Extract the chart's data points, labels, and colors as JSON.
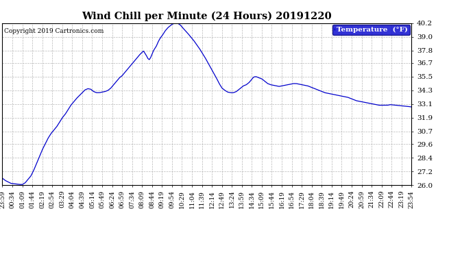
{
  "title": "Wind Chill per Minute (24 Hours) 20191220",
  "copyright": "Copyright 2019 Cartronics.com",
  "legend_label": "Temperature  (°F)",
  "line_color": "#0000cc",
  "legend_bg": "#0000cc",
  "legend_text_color": "#ffffff",
  "background_color": "#ffffff",
  "grid_color": "#b0b0b0",
  "ylim": [
    26.0,
    40.2
  ],
  "yticks": [
    26.0,
    27.2,
    28.4,
    29.6,
    30.7,
    31.9,
    33.1,
    34.3,
    35.5,
    36.7,
    37.8,
    39.0,
    40.2
  ],
  "x_labels": [
    "23:59",
    "00:34",
    "01:09",
    "01:44",
    "02:19",
    "02:54",
    "03:29",
    "04:04",
    "04:39",
    "05:14",
    "05:49",
    "06:24",
    "06:59",
    "07:34",
    "08:09",
    "08:44",
    "09:19",
    "09:54",
    "10:29",
    "11:04",
    "11:39",
    "12:14",
    "12:49",
    "13:24",
    "13:59",
    "14:34",
    "15:09",
    "15:44",
    "16:19",
    "16:54",
    "17:29",
    "18:04",
    "18:39",
    "19:14",
    "19:49",
    "20:24",
    "20:59",
    "21:34",
    "22:09",
    "22:44",
    "23:19",
    "23:54"
  ],
  "ctrl_points": [
    [
      0,
      26.6
    ],
    [
      10,
      26.4
    ],
    [
      30,
      26.15
    ],
    [
      60,
      26.05
    ],
    [
      70,
      26.05
    ],
    [
      80,
      26.2
    ],
    [
      100,
      26.8
    ],
    [
      110,
      27.3
    ],
    [
      120,
      27.9
    ],
    [
      130,
      28.5
    ],
    [
      140,
      29.1
    ],
    [
      150,
      29.6
    ],
    [
      160,
      30.1
    ],
    [
      170,
      30.5
    ],
    [
      180,
      30.8
    ],
    [
      190,
      31.1
    ],
    [
      200,
      31.5
    ],
    [
      210,
      31.9
    ],
    [
      220,
      32.2
    ],
    [
      230,
      32.6
    ],
    [
      240,
      33.0
    ],
    [
      250,
      33.3
    ],
    [
      260,
      33.6
    ],
    [
      270,
      33.85
    ],
    [
      280,
      34.1
    ],
    [
      290,
      34.35
    ],
    [
      300,
      34.45
    ],
    [
      310,
      34.4
    ],
    [
      320,
      34.2
    ],
    [
      330,
      34.1
    ],
    [
      340,
      34.1
    ],
    [
      350,
      34.15
    ],
    [
      360,
      34.2
    ],
    [
      370,
      34.3
    ],
    [
      380,
      34.5
    ],
    [
      390,
      34.8
    ],
    [
      400,
      35.1
    ],
    [
      410,
      35.4
    ],
    [
      420,
      35.6
    ],
    [
      430,
      35.9
    ],
    [
      440,
      36.2
    ],
    [
      450,
      36.5
    ],
    [
      460,
      36.8
    ],
    [
      470,
      37.1
    ],
    [
      480,
      37.4
    ],
    [
      490,
      37.65
    ],
    [
      495,
      37.75
    ],
    [
      500,
      37.55
    ],
    [
      505,
      37.35
    ],
    [
      510,
      37.1
    ],
    [
      515,
      37.0
    ],
    [
      520,
      37.2
    ],
    [
      525,
      37.5
    ],
    [
      530,
      37.8
    ],
    [
      535,
      38.0
    ],
    [
      540,
      38.2
    ],
    [
      545,
      38.5
    ],
    [
      550,
      38.75
    ],
    [
      555,
      38.95
    ],
    [
      560,
      39.1
    ],
    [
      565,
      39.3
    ],
    [
      570,
      39.5
    ],
    [
      575,
      39.65
    ],
    [
      580,
      39.8
    ],
    [
      585,
      39.9
    ],
    [
      590,
      40.0
    ],
    [
      595,
      40.1
    ],
    [
      600,
      40.15
    ],
    [
      605,
      40.2
    ],
    [
      610,
      40.2
    ],
    [
      615,
      40.18
    ],
    [
      620,
      40.1
    ],
    [
      625,
      40.0
    ],
    [
      630,
      39.85
    ],
    [
      650,
      39.3
    ],
    [
      670,
      38.7
    ],
    [
      690,
      38.0
    ],
    [
      710,
      37.2
    ],
    [
      730,
      36.3
    ],
    [
      750,
      35.4
    ],
    [
      760,
      34.9
    ],
    [
      770,
      34.5
    ],
    [
      780,
      34.3
    ],
    [
      790,
      34.15
    ],
    [
      800,
      34.1
    ],
    [
      810,
      34.1
    ],
    [
      820,
      34.2
    ],
    [
      825,
      34.3
    ],
    [
      830,
      34.4
    ],
    [
      835,
      34.5
    ],
    [
      840,
      34.6
    ],
    [
      845,
      34.7
    ],
    [
      850,
      34.75
    ],
    [
      855,
      34.8
    ],
    [
      860,
      34.9
    ],
    [
      865,
      35.0
    ],
    [
      870,
      35.15
    ],
    [
      875,
      35.3
    ],
    [
      880,
      35.45
    ],
    [
      885,
      35.5
    ],
    [
      890,
      35.5
    ],
    [
      895,
      35.45
    ],
    [
      900,
      35.4
    ],
    [
      905,
      35.35
    ],
    [
      910,
      35.3
    ],
    [
      915,
      35.2
    ],
    [
      920,
      35.1
    ],
    [
      925,
      35.0
    ],
    [
      930,
      34.9
    ],
    [
      940,
      34.8
    ],
    [
      950,
      34.75
    ],
    [
      960,
      34.7
    ],
    [
      970,
      34.65
    ],
    [
      980,
      34.7
    ],
    [
      990,
      34.75
    ],
    [
      1000,
      34.8
    ],
    [
      1010,
      34.85
    ],
    [
      1020,
      34.9
    ],
    [
      1030,
      34.9
    ],
    [
      1040,
      34.85
    ],
    [
      1050,
      34.8
    ],
    [
      1060,
      34.75
    ],
    [
      1070,
      34.7
    ],
    [
      1080,
      34.6
    ],
    [
      1090,
      34.5
    ],
    [
      1100,
      34.4
    ],
    [
      1110,
      34.3
    ],
    [
      1120,
      34.2
    ],
    [
      1130,
      34.1
    ],
    [
      1140,
      34.05
    ],
    [
      1150,
      34.0
    ],
    [
      1160,
      33.95
    ],
    [
      1170,
      33.9
    ],
    [
      1180,
      33.85
    ],
    [
      1190,
      33.8
    ],
    [
      1200,
      33.75
    ],
    [
      1210,
      33.7
    ],
    [
      1220,
      33.6
    ],
    [
      1230,
      33.5
    ],
    [
      1240,
      33.4
    ],
    [
      1250,
      33.35
    ],
    [
      1260,
      33.3
    ],
    [
      1270,
      33.25
    ],
    [
      1280,
      33.2
    ],
    [
      1290,
      33.15
    ],
    [
      1300,
      33.1
    ],
    [
      1310,
      33.05
    ],
    [
      1320,
      33.0
    ],
    [
      1330,
      33.0
    ],
    [
      1340,
      33.0
    ],
    [
      1350,
      33.0
    ],
    [
      1360,
      33.05
    ],
    [
      1380,
      33.0
    ],
    [
      1400,
      32.95
    ],
    [
      1420,
      32.9
    ],
    [
      1434,
      32.85
    ]
  ]
}
